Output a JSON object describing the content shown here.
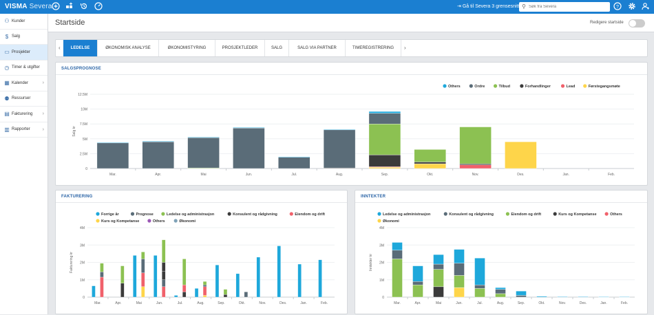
{
  "app": {
    "brand": "VISMA",
    "brand_sub": "Severa"
  },
  "topbar": {
    "icons": [
      "plus-icon",
      "grid-plus-icon",
      "history-icon",
      "speedometer-icon"
    ],
    "goto_label": "Gå til Severa 3 grensesnitt",
    "search_placeholder": "Søk fra Severa",
    "right_icons": [
      "help-icon",
      "settings-icon",
      "user-icon"
    ]
  },
  "sidebar": {
    "items": [
      {
        "label": "Kunder",
        "icon": "customers-icon",
        "chevron": false,
        "active": false
      },
      {
        "label": "Salg",
        "icon": "dollar-icon",
        "chevron": false,
        "active": false
      },
      {
        "label": "Prosjekter",
        "icon": "folder-icon",
        "chevron": false,
        "active": true
      },
      {
        "label": "Timer & utgifter",
        "icon": "clock-icon",
        "chevron": false,
        "active": false
      },
      {
        "label": "Kalender",
        "icon": "calendar-icon",
        "chevron": true,
        "active": false
      },
      {
        "label": "Ressurser",
        "icon": "people-icon",
        "chevron": false,
        "active": false
      },
      {
        "label": "Fakturering",
        "icon": "invoice-icon",
        "chevron": true,
        "active": false
      },
      {
        "label": "Rapporter",
        "icon": "chart-icon",
        "chevron": true,
        "active": false
      }
    ]
  },
  "page": {
    "title": "Startside",
    "edit_label": "Redigere startside"
  },
  "tabs": [
    {
      "label": "LEDELSE",
      "active": true
    },
    {
      "label": "ØKONOMISK ANALYSE",
      "active": false
    },
    {
      "label": "ØKONOMISTYRING",
      "active": false
    },
    {
      "label": "PROSJEKTLEDER",
      "active": false
    },
    {
      "label": "SALG",
      "active": false
    },
    {
      "label": "SALG VIA PARTNER",
      "active": false
    },
    {
      "label": "TIMEREGISTRERING",
      "active": false
    }
  ],
  "chart_data": [
    {
      "id": "salgsprognose",
      "title": "SALGSPROGNOSE",
      "type": "bar",
      "stacked": true,
      "ylabel": "Salg kr",
      "ylim": [
        0,
        12500000
      ],
      "y_ticks": [
        {
          "value": 0,
          "label": "0"
        },
        {
          "value": 2500000,
          "label": "2.5M"
        },
        {
          "value": 5000000,
          "label": "5M"
        },
        {
          "value": 7500000,
          "label": "7.5M"
        },
        {
          "value": 10000000,
          "label": "10M"
        },
        {
          "value": 12500000,
          "label": "12.5M"
        }
      ],
      "categories": [
        "Mar.",
        "Apr.",
        "Mai",
        "Jun.",
        "Jul.",
        "Aug.",
        "Sep.",
        "Okt.",
        "Nov.",
        "Des.",
        "Jan.",
        "Feb."
      ],
      "legend_position": "top-right",
      "series": [
        {
          "name": "Førstegangsmøte",
          "color": "#fed54a",
          "values": [
            0,
            0,
            0,
            0,
            0,
            0,
            200000,
            800000,
            0,
            4500000,
            0,
            0
          ]
        },
        {
          "name": "Lead",
          "color": "#f0616b",
          "values": [
            0,
            0,
            0,
            0,
            0,
            0,
            100000,
            0,
            600000,
            0,
            0,
            0
          ]
        },
        {
          "name": "Forhandlinger",
          "color": "#3b3b3b",
          "values": [
            0,
            0,
            0,
            0,
            0,
            100000,
            2000000,
            300000,
            200000,
            0,
            0,
            0
          ]
        },
        {
          "name": "Tilbud",
          "color": "#8cc152",
          "values": [
            0,
            0,
            100000,
            0,
            0,
            0,
            5200000,
            2100000,
            6200000,
            0,
            0,
            0
          ]
        },
        {
          "name": "Ordre",
          "color": "#5a6c78",
          "values": [
            4300000,
            4500000,
            5100000,
            6800000,
            1900000,
            6400000,
            1800000,
            0,
            0,
            0,
            0,
            0
          ],
          "point_colors": [
            "#5a6c78",
            "#5a6c78",
            "#5a6c78",
            "#5a6c78",
            "#5a6c78",
            "#5a6c78",
            "#5a6c78",
            "#5a6c78",
            "#5a6c78",
            "#5a6c78",
            "#5a6c78",
            "#5a6c78"
          ]
        },
        {
          "name": "Others",
          "color": "#1ea8db",
          "values": [
            100000,
            100000,
            100000,
            100000,
            100000,
            100000,
            300000,
            0,
            0,
            0,
            0,
            0
          ]
        }
      ]
    },
    {
      "id": "fakturering",
      "title": "FAKTURERING",
      "type": "bar",
      "stacked": true,
      "ylabel": "Fakturering kr",
      "ylim": [
        0,
        4000000
      ],
      "y_ticks": [
        {
          "value": 0,
          "label": "0"
        },
        {
          "value": 1000000,
          "label": "1M"
        },
        {
          "value": 2000000,
          "label": "2M"
        },
        {
          "value": 3000000,
          "label": "3M"
        },
        {
          "value": 4000000,
          "label": "4M"
        }
      ],
      "categories": [
        "Mar.",
        "Apr.",
        "Mai",
        "Jun.",
        "Jul.",
        "Aug.",
        "Sep.",
        "Okt.",
        "Nov.",
        "Des.",
        "Jan.",
        "Feb."
      ],
      "legend_position": "top",
      "groups": [
        {
          "values": {
            "forrige": 650000,
            "prognose": 0,
            "ledelse": 0,
            "konsulent": 0,
            "eiendom": 0,
            "kurs": 0,
            "others": 0,
            "okonomi": 0
          },
          "future": false
        },
        {
          "values": {
            "forrige": 0,
            "prognose": 0,
            "ledelse": 800000,
            "konsulent": 500000,
            "eiendom": 1200000,
            "kurs": 0,
            "others": 0,
            "okonomi": 0
          },
          "future": false
        },
        {
          "values": {
            "forrige": 0,
            "prognose": 0,
            "ledelse": 0,
            "konsulent": 0,
            "eiendom": 0,
            "kurs": 0,
            "others": 0,
            "okonomi": 0
          },
          "future": false
        },
        {
          "values": {
            "forrige": 0,
            "prognose": 0,
            "ledelse": 900000,
            "konsulent": 100000,
            "eiendom": 700000,
            "kurs": 0,
            "others": 0,
            "okonomi": 0
          },
          "future": false
        },
        {
          "values": {
            "forrige": 0,
            "prognose": 0,
            "ledelse": 0,
            "konsulent": 0,
            "eiendom": 0,
            "kurs": 0,
            "others": 0,
            "okonomi": 0
          },
          "future": false
        },
        {
          "values": {
            "forrige": 0,
            "prognose": 0,
            "ledelse": 0,
            "konsulent": 0,
            "eiendom": 0,
            "kurs": 0,
            "others": 0,
            "okonomi": 0
          },
          "future": false
        }
      ],
      "bars": [
        {
          "i": 0,
          "stack": [
            [
              "#1ea8db",
              650000
            ]
          ]
        },
        {
          "i": 0,
          "stack": [
            [
              "#f0616b",
              1150000
            ],
            [
              "#5a6c78",
              300000
            ],
            [
              "#8cc152",
              500000
            ],
            [
              "#fed54a",
              0
            ]
          ],
          "offset": 1
        },
        {
          "i": 1,
          "stack": [
            [
              "#fed54a",
              0
            ],
            [
              "#f0616b",
              0
            ],
            [
              "#3b3b3b",
              800000
            ],
            [
              "#8cc152",
              1000000
            ]
          ],
          "offset": 1
        },
        {
          "i": 2,
          "stack": [
            [
              "#1ea8db",
              2400000
            ]
          ]
        },
        {
          "i": 2,
          "stack": [
            [
              "#fed54a",
              600000
            ],
            [
              "#f0616b",
              800000
            ],
            [
              "#5a6c78",
              800000
            ],
            [
              "#8cc152",
              400000
            ]
          ],
          "offset": 1
        },
        {
          "i": 3,
          "stack": [
            [
              "#1ea8db",
              2400000
            ]
          ]
        },
        {
          "i": 3,
          "stack": [
            [
              "#f0616b",
              600000
            ],
            [
              "#f0616b",
              0
            ],
            [
              "#5a6c78",
              400000
            ],
            [
              "#3b3b3b",
              500000
            ],
            [
              "#3b3b3b",
              500000
            ],
            [
              "#8cc152",
              1300000
            ]
          ],
          "offset": 1
        },
        {
          "i": 4,
          "stack": [
            [
              "#1ea8db",
              100000
            ]
          ]
        },
        {
          "i": 4,
          "stack": [
            [
              "#3b3b3b",
              300000
            ],
            [
              "#f0616b",
              400000
            ],
            [
              "#8cc152",
              1500000
            ]
          ],
          "offset": 1
        },
        {
          "i": 5,
          "stack": [
            [
              "#1ea8db",
              500000
            ]
          ]
        },
        {
          "i": 5,
          "stack": [
            [
              "#fed54a",
              100000
            ],
            [
              "#f0616b",
              500000
            ],
            [
              "#5a6c78",
              100000
            ],
            [
              "#8cc152",
              200000
            ]
          ],
          "offset": 1
        },
        {
          "i": 6,
          "stack": [
            [
              "#1ea8db",
              1850000
            ]
          ]
        },
        {
          "i": 6,
          "stack": [
            [
              "#3b3b3b",
              150000
            ],
            [
              "#8cc152",
              300000
            ]
          ],
          "offset": 1
        },
        {
          "i": 7,
          "stack": [
            [
              "#1ea8db",
              1350000
            ]
          ]
        },
        {
          "i": 7,
          "stack": [
            [
              "#5a6c78",
              300000
            ]
          ],
          "offset": 1
        },
        {
          "i": 8,
          "stack": [
            [
              "#1ea8db",
              2300000
            ]
          ]
        },
        {
          "i": 9,
          "stack": [
            [
              "#1ea8db",
              2950000
            ]
          ]
        },
        {
          "i": 10,
          "stack": [
            [
              "#1ea8db",
              1900000
            ]
          ]
        },
        {
          "i": 11,
          "stack": [
            [
              "#1ea8db",
              2150000
            ]
          ]
        }
      ],
      "series": [
        {
          "name": "Forrige år",
          "color": "#1ea8db"
        },
        {
          "name": "Prognose",
          "color": "#5a6c78"
        },
        {
          "name": "Ledelse og administrasjon",
          "color": "#8cc152"
        },
        {
          "name": "Konsulent og rådgivning",
          "color": "#3b3b3b"
        },
        {
          "name": "Eiendom og drift",
          "color": "#f0616b"
        },
        {
          "name": "Kurs og Kompetanse",
          "color": "#fed54a"
        },
        {
          "name": "Others",
          "color": "#9b59b6"
        },
        {
          "name": "Økonomi",
          "color": "#7fa2b8"
        }
      ]
    },
    {
      "id": "inntekter",
      "title": "INNTEKTER",
      "type": "bar",
      "stacked": true,
      "ylabel": "Inntekter kr",
      "ylim": [
        0,
        4000000
      ],
      "y_ticks": [
        {
          "value": 0,
          "label": "0"
        },
        {
          "value": 1000000,
          "label": "1M"
        },
        {
          "value": 2000000,
          "label": "2M"
        },
        {
          "value": 3000000,
          "label": "3M"
        },
        {
          "value": 4000000,
          "label": "4M"
        }
      ],
      "categories": [
        "Mar.",
        "Apr.",
        "Mai",
        "Jun.",
        "Jul.",
        "Aug.",
        "Sep.",
        "Okt.",
        "Nov.",
        "Des.",
        "Jan.",
        "Feb."
      ],
      "legend_position": "top",
      "bars": [
        {
          "i": 0,
          "stack": [
            [
              "#8cc152",
              2200000
            ],
            [
              "#5a6c78",
              500000
            ],
            [
              "#1ea8db",
              450000
            ]
          ]
        },
        {
          "i": 1,
          "stack": [
            [
              "#8cc152",
              700000
            ],
            [
              "#5a6c78",
              200000
            ],
            [
              "#1ea8db",
              900000
            ]
          ]
        },
        {
          "i": 2,
          "stack": [
            [
              "#3b3b3b",
              600000
            ],
            [
              "#8cc152",
              1000000
            ],
            [
              "#5a6c78",
              300000
            ],
            [
              "#1ea8db",
              550000
            ]
          ]
        },
        {
          "i": 3,
          "stack": [
            [
              "#fed54a",
              550000
            ],
            [
              "#8cc152",
              700000
            ],
            [
              "#5a6c78",
              700000
            ],
            [
              "#1ea8db",
              800000
            ]
          ]
        },
        {
          "i": 4,
          "stack": [
            [
              "#8cc152",
              500000
            ],
            [
              "#5a6c78",
              200000
            ],
            [
              "#1ea8db",
              1550000
            ]
          ]
        },
        {
          "i": 5,
          "stack": [
            [
              "#8cc152",
              200000
            ],
            [
              "#5a6c78",
              250000
            ],
            [
              "#1ea8db",
              100000
            ]
          ]
        },
        {
          "i": 6,
          "stack": [
            [
              "#5a6c78",
              100000
            ],
            [
              "#1ea8db",
              250000
            ]
          ]
        },
        {
          "i": 7,
          "stack": [
            [
              "#1ea8db",
              50000
            ]
          ]
        },
        {
          "i": 8,
          "stack": [
            [
              "#1ea8db",
              30000
            ]
          ]
        },
        {
          "i": 9,
          "stack": [
            [
              "#1ea8db",
              30000
            ]
          ]
        },
        {
          "i": 10,
          "stack": [
            [
              "#1ea8db",
              20000
            ]
          ]
        },
        {
          "i": 11,
          "stack": [
            [
              "#1ea8db",
              20000
            ]
          ]
        }
      ],
      "series": [
        {
          "name": "Ledelse og administrasjon",
          "color": "#1ea8db"
        },
        {
          "name": "Konsulent og rådgivning",
          "color": "#5a6c78"
        },
        {
          "name": "Eiendom og drift",
          "color": "#8cc152"
        },
        {
          "name": "Kurs og Kompetanse",
          "color": "#3b3b3b"
        },
        {
          "name": "Others",
          "color": "#f0616b"
        },
        {
          "name": "Økonomi",
          "color": "#fed54a"
        }
      ]
    }
  ]
}
